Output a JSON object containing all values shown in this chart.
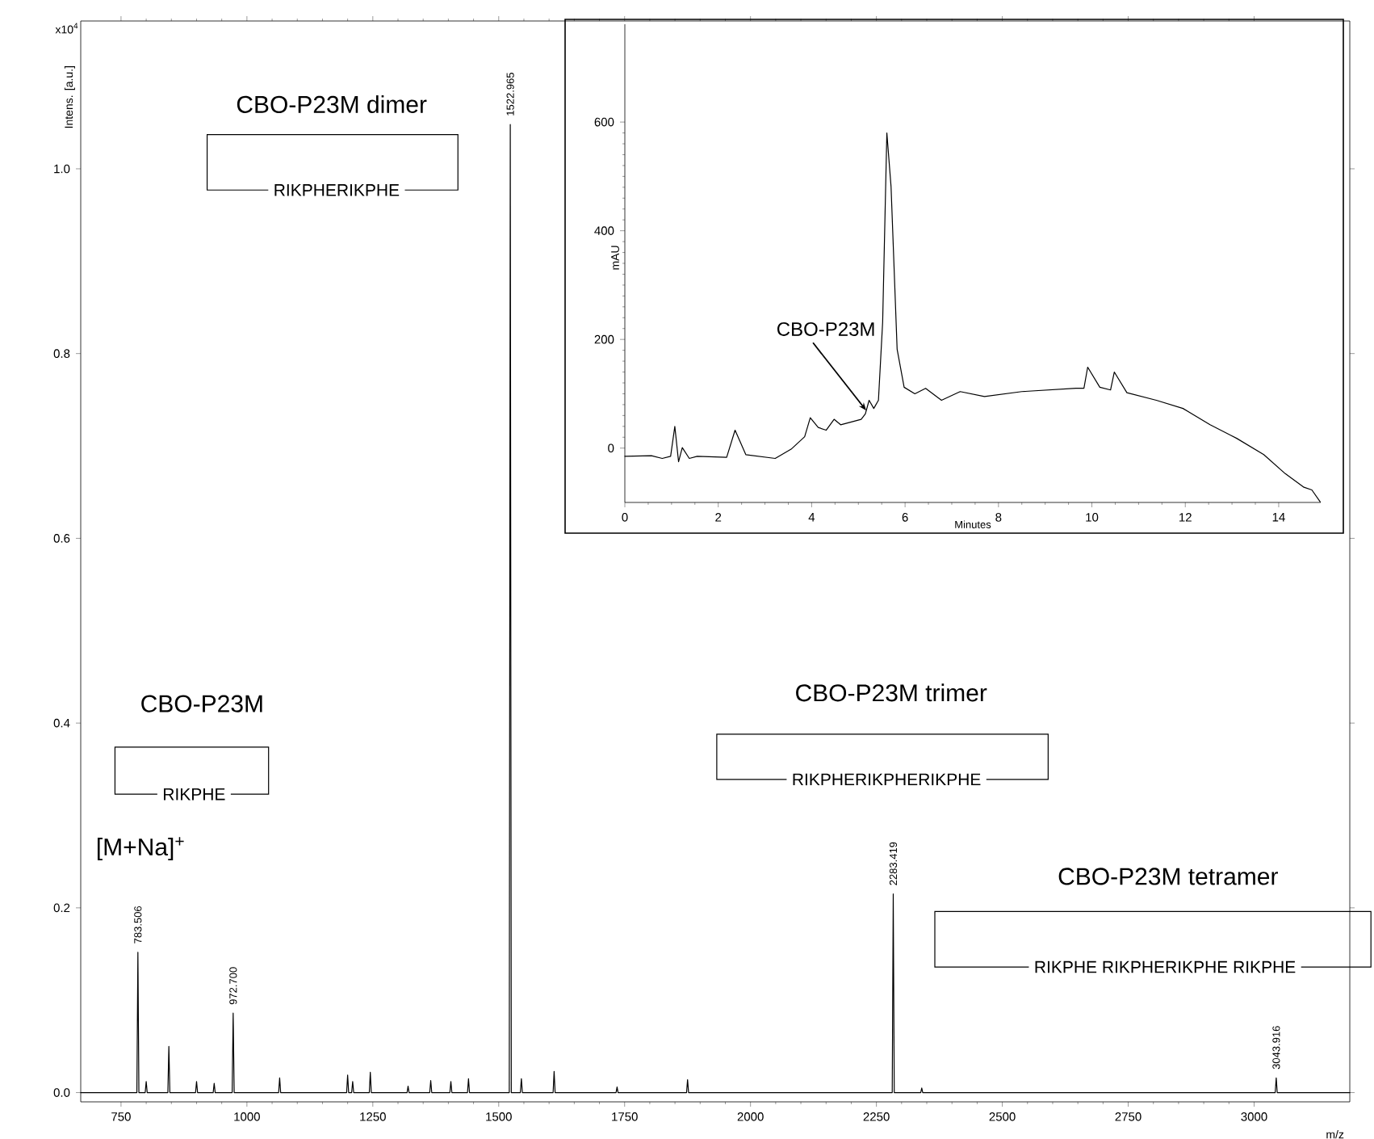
{
  "chart_data": [
    {
      "type": "line",
      "xlabel": "m/z",
      "ylabel": "Intens. [a.u.]",
      "xlim": [
        670,
        3190
      ],
      "ylim": [
        -0.01,
        1.16
      ],
      "xticks": [
        750,
        1000,
        1250,
        1500,
        1750,
        2000,
        2250,
        2500,
        2750,
        3000
      ],
      "yticks": [
        {
          "value": 0,
          "label": "0.0"
        },
        {
          "value": 0.2,
          "label": "0.2"
        },
        {
          "value": 0.4,
          "label": "0.4"
        },
        {
          "value": 0.6,
          "label": "0.6"
        },
        {
          "value": 0.8,
          "label": "0.8"
        },
        {
          "value": 1.0,
          "label": "1.0"
        }
      ],
      "series": [
        {
          "color": "#000000",
          "x": [
            670,
            781.5,
            783.506,
            785.5,
            798,
            800,
            802,
            843,
            845,
            847,
            898,
            900,
            902,
            933,
            935,
            937,
            970.7,
            972.7,
            974.7,
            1063,
            1065,
            1067,
            1198,
            1200,
            1202,
            1208,
            1210,
            1212,
            1243,
            1245,
            1247,
            1318,
            1320,
            1322,
            1363,
            1365,
            1367,
            1403,
            1405,
            1407,
            1438,
            1440,
            1442,
            1520.965,
            1522.965,
            1524.965,
            1543,
            1545,
            1547,
            1608,
            1610,
            1612,
            1733,
            1735,
            1737,
            1873,
            1875,
            1877,
            2281.419,
            2283.419,
            2285.419,
            2338,
            2340,
            2342,
            3041.916,
            3043.916,
            3045.916,
            3190
          ],
          "values": [
            0,
            0,
            0.152,
            0,
            0,
            0.012,
            0,
            0,
            0.05,
            0,
            0,
            0.012,
            0,
            0,
            0.01,
            0,
            0,
            0.086,
            0,
            0,
            0.016,
            0,
            0,
            0.019,
            0,
            0,
            0.012,
            0,
            0,
            0.022,
            0,
            0,
            0.007,
            0,
            0,
            0.013,
            0,
            0,
            0.012,
            0,
            0,
            0.015,
            0,
            0,
            1.048,
            0,
            0,
            0.015,
            0,
            0,
            0.023,
            0,
            0,
            0.006,
            0,
            0,
            0.014,
            0,
            0,
            0.215,
            0,
            0,
            0.005,
            0,
            0,
            0.016,
            0,
            0
          ]
        }
      ],
      "annotations": [
        "CBO-P23M dimer",
        "RIKPHERIKPHE",
        "CBO-P23M",
        "RIKPHE",
        "[M+Na]$^{+}$",
        "CBO-P23M trimer",
        "RIKPHERIKPHERIKPHE",
        "CBO-P23M tetramer",
        "RIKPHE RIKPHERIKPHE RIKPHE",
        "x10$^{4}$",
        {
          "text": "783.506",
          "x": 783.506,
          "y": 0.152
        },
        {
          "text": "972.700",
          "x": 972.7,
          "y": 0.086
        },
        {
          "text": "1522.965",
          "x": 1522.965,
          "y": 1.048
        },
        {
          "text": "2283.419",
          "x": 2283.419,
          "y": 0.215
        },
        {
          "text": "3043.916",
          "x": 3043.916,
          "y": 0.016
        }
      ]
    },
    {
      "type": "line",
      "xlabel": "Minutes",
      "ylabel": "mAU",
      "xlim": [
        0,
        14.9
      ],
      "ylim": [
        -100,
        780
      ],
      "xticks": [
        0,
        2,
        4,
        6,
        8,
        10,
        12,
        14
      ],
      "yticks": [
        0,
        200,
        400,
        600
      ],
      "series": [
        {
          "color": "#000000",
          "x": [
            0,
            0.57,
            0.8,
            0.98,
            1.07,
            1.15,
            1.23,
            1.38,
            1.55,
            2.18,
            2.36,
            2.59,
            3.22,
            3.56,
            3.85,
            3.97,
            4.14,
            4.31,
            4.48,
            4.62,
            5.06,
            5.15,
            5.23,
            5.33,
            5.43,
            5.52,
            5.61,
            5.7,
            5.83,
            5.98,
            6.21,
            6.44,
            6.78,
            7.18,
            7.7,
            8.5,
            9.66,
            9.83,
            9.91,
            10.17,
            10.4,
            10.48,
            10.75,
            11.38,
            11.95,
            12.53,
            13.1,
            13.68,
            14.14,
            14.54,
            14.71,
            14.89
          ],
          "values": [
            -15,
            -14,
            -19,
            -15,
            40,
            -25,
            1,
            -19,
            -15,
            -17,
            33,
            -12,
            -19,
            -2,
            21,
            56,
            38,
            33,
            53,
            43,
            53,
            63,
            88,
            73,
            88,
            232,
            580,
            481,
            182,
            112,
            100,
            110,
            88,
            104,
            95,
            104,
            110,
            110,
            149,
            112,
            107,
            140,
            102,
            88,
            73,
            43,
            18,
            -12,
            -47,
            -72,
            -77,
            -99
          ]
        }
      ],
      "annotations": [
        {
          "text": "CBO-P23M",
          "x": 5.17,
          "y": 69
        }
      ]
    }
  ]
}
